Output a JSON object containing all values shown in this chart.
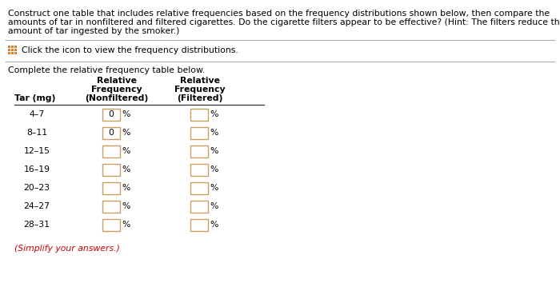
{
  "title_line1": "Construct one table that includes relative frequencies based on the frequency distributions shown below, then compare the",
  "title_line2": "amounts of tar in nonfiltered and filtered cigarettes. Do the cigarette filters appear to be effective? (Hint: The filters reduce the",
  "title_line3": "amount of tar ingested by the smoker.)",
  "click_text": "Click the icon to view the frequency distributions.",
  "complete_text": "Complete the relative frequency table below.",
  "rows": [
    "4–7",
    "8–11",
    "12–15",
    "16–19",
    "20–23",
    "24–27",
    "28–31"
  ],
  "nf_values": [
    "0",
    "0",
    "",
    "",
    "",
    "",
    ""
  ],
  "f_values": [
    "",
    "",
    "",
    "",
    "",
    "",
    ""
  ],
  "simplify_text": "(Simplify your answers.)",
  "bg_color": "#ffffff",
  "text_color": "#000000",
  "red_color": "#cc0000",
  "icon_color": "#d4832a",
  "line_color": "#aaaaaa",
  "header_line_color": "#333333",
  "box_border_color": "#c8a060",
  "box_fill_color": "#ffffff"
}
